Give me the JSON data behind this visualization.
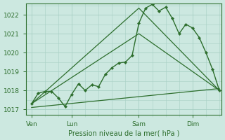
{
  "background_color": "#cce8e0",
  "grid_color": "#a8cfc4",
  "line_color": "#2d6e2d",
  "xlabel": "Pression niveau de la mer( hPa )",
  "ylim": [
    1016.7,
    1022.6
  ],
  "yticks": [
    1017,
    1018,
    1019,
    1020,
    1021,
    1022
  ],
  "xtick_labels": [
    "Ven",
    "Lun",
    "Sam",
    "Dim"
  ],
  "xtick_positions": [
    0,
    72,
    192,
    288
  ],
  "xlim": [
    -10,
    340
  ],
  "total_points": 336,
  "series1_x": [
    0,
    12,
    24,
    36,
    48,
    60,
    72,
    84,
    96,
    108,
    120,
    132,
    144,
    156,
    168,
    180,
    192,
    204,
    216,
    228,
    240,
    252,
    264,
    276,
    288,
    300,
    312,
    324,
    336
  ],
  "series1_y": [
    1017.3,
    1017.85,
    1017.95,
    1017.95,
    1017.6,
    1017.15,
    1017.8,
    1018.35,
    1018.0,
    1018.3,
    1018.2,
    1018.85,
    1019.2,
    1019.45,
    1019.5,
    1019.85,
    1021.55,
    1022.35,
    1022.55,
    1022.2,
    1022.4,
    1021.8,
    1021.0,
    1021.5,
    1021.3,
    1020.8,
    1020.0,
    1019.1,
    1018.0
  ],
  "series2_x": [
    0,
    192,
    336
  ],
  "series2_y": [
    1017.3,
    1022.35,
    1018.0
  ],
  "series3_x": [
    0,
    192,
    336
  ],
  "series3_y": [
    1017.3,
    1021.0,
    1018.0
  ],
  "series4_x": [
    0,
    336
  ],
  "series4_y": [
    1017.1,
    1018.1
  ]
}
